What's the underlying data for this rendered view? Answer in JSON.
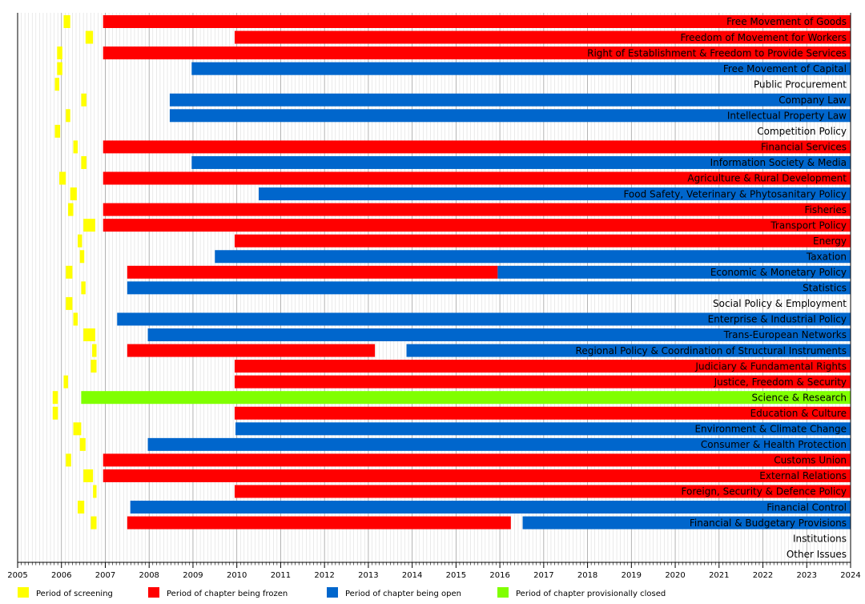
{
  "chart_data": {
    "type": "gantt",
    "x_axis": {
      "min": 2005,
      "max": 2024,
      "tick_labels": [
        "2005",
        "2006",
        "2007",
        "2008",
        "2009",
        "2010",
        "2011",
        "2012",
        "2013",
        "2014",
        "2015",
        "2016",
        "2017",
        "2018",
        "2019",
        "2020",
        "2021",
        "2022",
        "2023",
        "2024"
      ]
    },
    "grid": "vertical",
    "legend_position": "bottom",
    "colors": {
      "screening": "#ffff00",
      "frozen": "#ff0000",
      "open": "#0066cc",
      "closed": "#80ff00"
    },
    "legend": [
      {
        "key": "screening",
        "label": "Period of screening"
      },
      {
        "key": "frozen",
        "label": "Period of chapter being frozen"
      },
      {
        "key": "open",
        "label": "Period of chapter being open"
      },
      {
        "key": "closed",
        "label": "Period of chapter provisionally closed"
      }
    ],
    "chapters": [
      {
        "label": "Free Movement of Goods",
        "segments": [
          {
            "status": "screening",
            "start": 2006.05,
            "end": 2006.2
          },
          {
            "status": "frozen",
            "start": 2006.95,
            "end": 2024
          }
        ]
      },
      {
        "label": "Freedom of Movement for Workers",
        "segments": [
          {
            "status": "screening",
            "start": 2006.55,
            "end": 2006.72
          },
          {
            "status": "frozen",
            "start": 2009.95,
            "end": 2024
          }
        ]
      },
      {
        "label": "Right of Establishment & Freedom to Provide Services",
        "segments": [
          {
            "status": "screening",
            "start": 2005.9,
            "end": 2006.02
          },
          {
            "status": "frozen",
            "start": 2006.95,
            "end": 2024
          }
        ]
      },
      {
        "label": "Free Movement of Capital",
        "segments": [
          {
            "status": "screening",
            "start": 2005.9,
            "end": 2006.02
          },
          {
            "status": "open",
            "start": 2008.97,
            "end": 2024
          }
        ]
      },
      {
        "label": "Public Procurement",
        "segments": [
          {
            "status": "screening",
            "start": 2005.85,
            "end": 2005.95
          }
        ]
      },
      {
        "label": "Company Law",
        "segments": [
          {
            "status": "screening",
            "start": 2006.45,
            "end": 2006.57
          },
          {
            "status": "open",
            "start": 2008.47,
            "end": 2024
          }
        ]
      },
      {
        "label": "Intellectual Property Law",
        "segments": [
          {
            "status": "screening",
            "start": 2006.1,
            "end": 2006.2
          },
          {
            "status": "open",
            "start": 2008.47,
            "end": 2024
          }
        ]
      },
      {
        "label": "Competition Policy",
        "segments": [
          {
            "status": "screening",
            "start": 2005.85,
            "end": 2005.97
          }
        ]
      },
      {
        "label": "Financial Services",
        "segments": [
          {
            "status": "screening",
            "start": 2006.27,
            "end": 2006.37
          },
          {
            "status": "frozen",
            "start": 2006.95,
            "end": 2024
          }
        ]
      },
      {
        "label": "Information Society & Media",
        "segments": [
          {
            "status": "screening",
            "start": 2006.45,
            "end": 2006.57
          },
          {
            "status": "open",
            "start": 2008.97,
            "end": 2024
          }
        ]
      },
      {
        "label": "Agriculture & Rural Development",
        "segments": [
          {
            "status": "screening",
            "start": 2005.95,
            "end": 2006.1
          },
          {
            "status": "frozen",
            "start": 2006.95,
            "end": 2024
          }
        ]
      },
      {
        "label": "Food Safety, Veterinary & Phytosanitary Policy",
        "segments": [
          {
            "status": "screening",
            "start": 2006.2,
            "end": 2006.35
          },
          {
            "status": "open",
            "start": 2010.5,
            "end": 2024
          }
        ]
      },
      {
        "label": "Fisheries",
        "segments": [
          {
            "status": "screening",
            "start": 2006.15,
            "end": 2006.27
          },
          {
            "status": "frozen",
            "start": 2006.95,
            "end": 2024
          }
        ]
      },
      {
        "label": "Transport Policy",
        "segments": [
          {
            "status": "screening",
            "start": 2006.5,
            "end": 2006.77
          },
          {
            "status": "frozen",
            "start": 2006.95,
            "end": 2024
          }
        ]
      },
      {
        "label": "Energy",
        "segments": [
          {
            "status": "screening",
            "start": 2006.37,
            "end": 2006.47
          },
          {
            "status": "frozen",
            "start": 2009.95,
            "end": 2024
          }
        ]
      },
      {
        "label": "Taxation",
        "segments": [
          {
            "status": "screening",
            "start": 2006.42,
            "end": 2006.52
          },
          {
            "status": "open",
            "start": 2009.5,
            "end": 2024
          }
        ]
      },
      {
        "label": "Economic & Monetary Policy",
        "segments": [
          {
            "status": "screening",
            "start": 2006.1,
            "end": 2006.25
          },
          {
            "status": "frozen",
            "start": 2007.5,
            "end": 2015.95
          },
          {
            "status": "open",
            "start": 2015.95,
            "end": 2024
          }
        ]
      },
      {
        "label": "Statistics",
        "segments": [
          {
            "status": "screening",
            "start": 2006.45,
            "end": 2006.55
          },
          {
            "status": "open",
            "start": 2007.5,
            "end": 2024
          }
        ]
      },
      {
        "label": "Social Policy & Employment",
        "segments": [
          {
            "status": "screening",
            "start": 2006.1,
            "end": 2006.25
          }
        ]
      },
      {
        "label": "Enterprise & Industrial Policy",
        "segments": [
          {
            "status": "screening",
            "start": 2006.27,
            "end": 2006.37
          },
          {
            "status": "open",
            "start": 2007.27,
            "end": 2024
          }
        ]
      },
      {
        "label": "Trans-European Networks",
        "segments": [
          {
            "status": "screening",
            "start": 2006.5,
            "end": 2006.77
          },
          {
            "status": "open",
            "start": 2007.97,
            "end": 2024
          }
        ]
      },
      {
        "label": "Regional Policy & Coordination of Structural Instruments",
        "segments": [
          {
            "status": "screening",
            "start": 2006.7,
            "end": 2006.8
          },
          {
            "status": "frozen",
            "start": 2007.5,
            "end": 2013.15
          },
          {
            "status": "open",
            "start": 2013.87,
            "end": 2024
          }
        ]
      },
      {
        "label": "Judiciary & Fundamental Rights",
        "segments": [
          {
            "status": "screening",
            "start": 2006.67,
            "end": 2006.8
          },
          {
            "status": "frozen",
            "start": 2009.95,
            "end": 2024
          }
        ]
      },
      {
        "label": "Justice, Freedom & Security",
        "segments": [
          {
            "status": "screening",
            "start": 2006.05,
            "end": 2006.15
          },
          {
            "status": "frozen",
            "start": 2009.95,
            "end": 2024
          }
        ]
      },
      {
        "label": "Science & Research",
        "segments": [
          {
            "status": "screening",
            "start": 2005.8,
            "end": 2005.92
          },
          {
            "status": "closed",
            "start": 2006.45,
            "end": 2024
          }
        ]
      },
      {
        "label": "Education & Culture",
        "segments": [
          {
            "status": "screening",
            "start": 2005.8,
            "end": 2005.92
          },
          {
            "status": "frozen",
            "start": 2009.95,
            "end": 2024
          }
        ]
      },
      {
        "label": "Environment & Climate Change",
        "segments": [
          {
            "status": "screening",
            "start": 2006.27,
            "end": 2006.45
          },
          {
            "status": "open",
            "start": 2009.97,
            "end": 2024
          }
        ]
      },
      {
        "label": "Consumer & Health Protection",
        "segments": [
          {
            "status": "screening",
            "start": 2006.42,
            "end": 2006.55
          },
          {
            "status": "open",
            "start": 2007.97,
            "end": 2024
          }
        ]
      },
      {
        "label": "Customs Union",
        "segments": [
          {
            "status": "screening",
            "start": 2006.1,
            "end": 2006.22
          },
          {
            "status": "frozen",
            "start": 2006.95,
            "end": 2024
          }
        ]
      },
      {
        "label": "External Relations",
        "segments": [
          {
            "status": "screening",
            "start": 2006.5,
            "end": 2006.72
          },
          {
            "status": "frozen",
            "start": 2006.95,
            "end": 2024
          }
        ]
      },
      {
        "label": "Foreign, Security & Defence Policy",
        "segments": [
          {
            "status": "screening",
            "start": 2006.72,
            "end": 2006.8
          },
          {
            "status": "frozen",
            "start": 2009.95,
            "end": 2024
          }
        ]
      },
      {
        "label": "Financial Control",
        "segments": [
          {
            "status": "screening",
            "start": 2006.37,
            "end": 2006.52
          },
          {
            "status": "open",
            "start": 2007.57,
            "end": 2024
          }
        ]
      },
      {
        "label": "Financial & Budgetary Provisions",
        "segments": [
          {
            "status": "screening",
            "start": 2006.67,
            "end": 2006.8
          },
          {
            "status": "frozen",
            "start": 2007.5,
            "end": 2016.25
          },
          {
            "status": "open",
            "start": 2016.52,
            "end": 2024
          }
        ]
      },
      {
        "label": "Institutions",
        "segments": []
      },
      {
        "label": "Other Issues",
        "segments": []
      }
    ]
  }
}
